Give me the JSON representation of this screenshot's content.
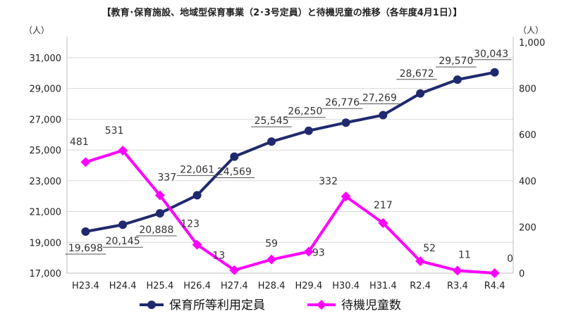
{
  "chart_data": {
    "type": "line",
    "title": "【教育･保育施設、地域型保育事業（2･3号定員）と待機児童の推移（各年度4月1日）】",
    "y_unit_left": "（人）",
    "y_unit_right": "（人）",
    "categories": [
      "H23.4",
      "H24.4",
      "H25.4",
      "H26.4",
      "H27.4",
      "H28.4",
      "H29.4",
      "H30.4",
      "H31.4",
      "R2.4",
      "R3.4",
      "R4.4"
    ],
    "left_axis": {
      "ylim": [
        17000,
        32000
      ],
      "ticks": [
        17000,
        19000,
        21000,
        23000,
        25000,
        27000,
        29000,
        31000
      ],
      "tick_labels": [
        "17,000",
        "19,000",
        "21,000",
        "23,000",
        "25,000",
        "27,000",
        "29,000",
        "31,000"
      ]
    },
    "right_axis": {
      "ylim": [
        0,
        1000
      ],
      "ticks": [
        0,
        200,
        400,
        600,
        800,
        1000
      ],
      "tick_labels": [
        "0",
        "200",
        "400",
        "600",
        "800",
        "1,000"
      ]
    },
    "series": [
      {
        "name": "保育所等利用定員",
        "axis": "left",
        "color": "#1f2a6e",
        "marker": "circle",
        "values": [
          19698,
          20145,
          20888,
          22061,
          24569,
          25545,
          26250,
          26776,
          27269,
          28672,
          29570,
          30043
        ],
        "labels": [
          "19,698",
          "20,145",
          "20,888",
          "22,061",
          "24,569",
          "25,545",
          "26,250",
          "26,776",
          "27,269",
          "28,672",
          "29,570",
          "30,043"
        ]
      },
      {
        "name": "待機児童数",
        "axis": "right",
        "color": "#ff00ff",
        "marker": "diamond",
        "values": [
          481,
          531,
          337,
          123,
          13,
          59,
          93,
          332,
          217,
          52,
          11,
          0
        ],
        "labels": [
          "481",
          "531",
          "337",
          "123",
          "13",
          "59",
          "93",
          "332",
          "217",
          "52",
          "11",
          "0"
        ]
      }
    ],
    "legend_position": "bottom",
    "grid": true
  }
}
